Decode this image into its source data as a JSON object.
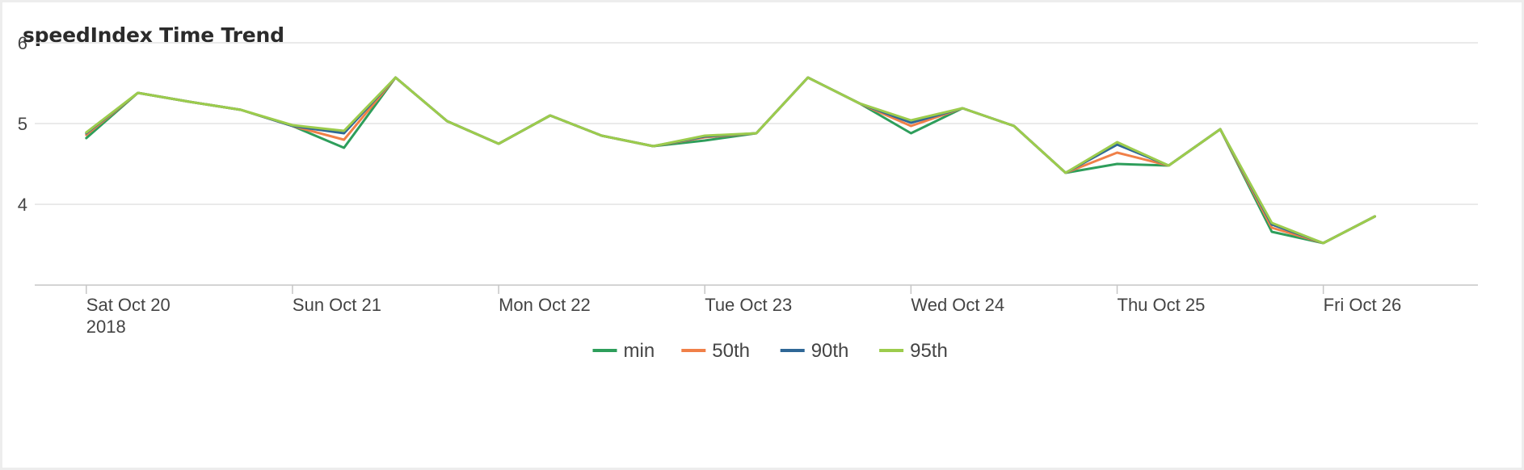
{
  "chart_data": {
    "type": "line",
    "title": "speedIndex Time Trend",
    "xlabel": "",
    "ylabel": "",
    "ylim": [
      3,
      6
    ],
    "xlim": [
      "2018-10-19T18:00",
      "2018-10-26T18:00"
    ],
    "grid": true,
    "legend_position": "bottom",
    "x_ticks": [
      {
        "value": "2018-10-20",
        "label": "Sat Oct 20",
        "sublabel": "2018"
      },
      {
        "value": "2018-10-21",
        "label": "Sun Oct 21",
        "sublabel": ""
      },
      {
        "value": "2018-10-22",
        "label": "Mon Oct 22",
        "sublabel": ""
      },
      {
        "value": "2018-10-23",
        "label": "Tue Oct 23",
        "sublabel": ""
      },
      {
        "value": "2018-10-24",
        "label": "Wed Oct 24",
        "sublabel": ""
      },
      {
        "value": "2018-10-25",
        "label": "Thu Oct 25",
        "sublabel": ""
      },
      {
        "value": "2018-10-26",
        "label": "Fri Oct 26",
        "sublabel": ""
      }
    ],
    "y_ticks": [
      {
        "value": 4,
        "label": "4"
      },
      {
        "value": 5,
        "label": "5"
      },
      {
        "value": 6,
        "label": "6"
      }
    ],
    "x": [
      "2018-10-20T00:00",
      "2018-10-20T06:00",
      "2018-10-20T12:00",
      "2018-10-20T18:00",
      "2018-10-21T00:00",
      "2018-10-21T06:00",
      "2018-10-21T12:00",
      "2018-10-21T18:00",
      "2018-10-22T00:00",
      "2018-10-22T06:00",
      "2018-10-22T12:00",
      "2018-10-22T18:00",
      "2018-10-23T00:00",
      "2018-10-23T06:00",
      "2018-10-23T12:00",
      "2018-10-23T18:00",
      "2018-10-24T00:00",
      "2018-10-24T06:00",
      "2018-10-24T12:00",
      "2018-10-24T18:00",
      "2018-10-25T00:00",
      "2018-10-25T06:00",
      "2018-10-25T12:00",
      "2018-10-25T18:00",
      "2018-10-26T00:00",
      "2018-10-26T06:00"
    ],
    "series": [
      {
        "name": "min",
        "color": "#2e9e5b",
        "values": [
          4.82,
          5.38,
          5.27,
          5.17,
          4.97,
          4.7,
          5.57,
          5.03,
          4.75,
          5.1,
          4.85,
          4.72,
          4.79,
          4.88,
          5.57,
          5.25,
          4.88,
          5.19,
          4.97,
          4.39,
          4.5,
          4.48,
          4.93,
          3.66,
          3.52,
          3.85
        ]
      },
      {
        "name": "50th",
        "color": "#f08048",
        "values": [
          4.86,
          5.38,
          5.27,
          5.17,
          4.97,
          4.8,
          5.57,
          5.03,
          4.75,
          5.1,
          4.85,
          4.72,
          4.83,
          4.88,
          5.57,
          5.25,
          4.97,
          5.19,
          4.97,
          4.39,
          4.64,
          4.48,
          4.93,
          3.71,
          3.52,
          3.85
        ]
      },
      {
        "name": "90th",
        "color": "#2f6796",
        "values": [
          4.88,
          5.38,
          5.27,
          5.17,
          4.97,
          4.88,
          5.57,
          5.03,
          4.75,
          5.1,
          4.85,
          4.72,
          4.84,
          4.88,
          5.57,
          5.25,
          5.01,
          5.19,
          4.97,
          4.39,
          4.74,
          4.48,
          4.93,
          3.75,
          3.52,
          3.85
        ]
      },
      {
        "name": "95th",
        "color": "#9ccc4c",
        "values": [
          4.89,
          5.38,
          5.27,
          5.17,
          4.98,
          4.91,
          5.57,
          5.03,
          4.75,
          5.1,
          4.85,
          4.72,
          4.85,
          4.88,
          5.57,
          5.25,
          5.04,
          5.19,
          4.97,
          4.39,
          4.77,
          4.48,
          4.93,
          3.77,
          3.52,
          3.85
        ]
      }
    ]
  },
  "colors": {
    "grid": "#e4e4e4",
    "axis": "#c6c6c6",
    "text": "#444444"
  }
}
